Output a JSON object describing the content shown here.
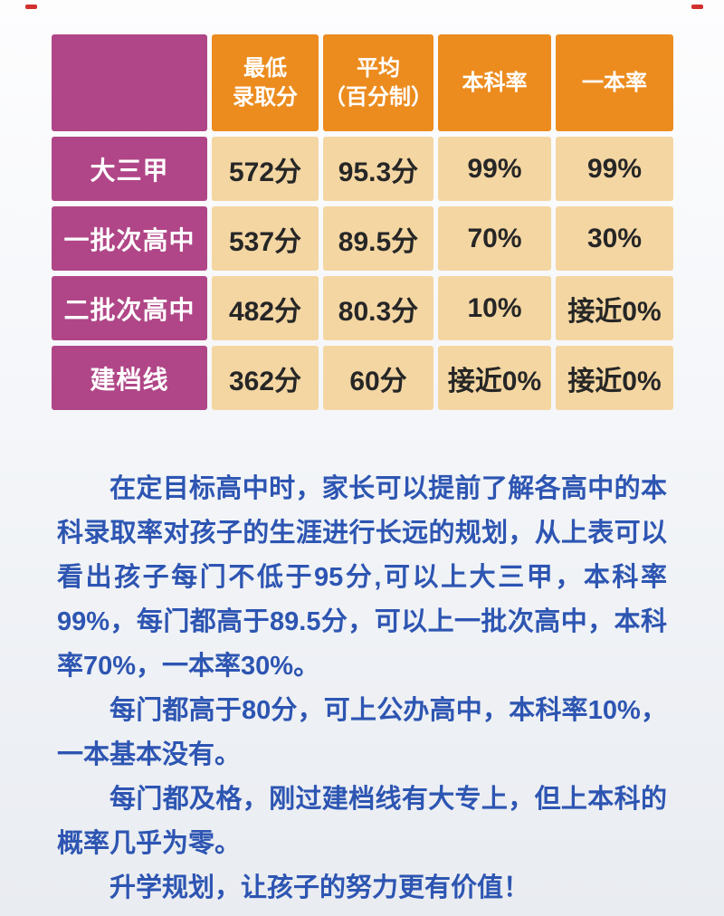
{
  "table": {
    "headers": [
      {
        "lines": []
      },
      {
        "lines": [
          "最低",
          "录取分"
        ]
      },
      {
        "lines": [
          "平均",
          "（百分制）"
        ]
      },
      {
        "lines": [
          "本科率"
        ]
      },
      {
        "lines": [
          "一本率"
        ]
      }
    ],
    "rows": [
      {
        "label": "大三甲",
        "values": [
          "572分",
          "95.3分",
          "99%",
          "99%"
        ]
      },
      {
        "label": "一批次高中",
        "values": [
          "537分",
          "89.5分",
          "70%",
          "30%"
        ]
      },
      {
        "label": "二批次高中",
        "values": [
          "482分",
          "80.3分",
          "10%",
          "接近0%"
        ]
      },
      {
        "label": "建档线",
        "values": [
          "362分",
          "60分",
          "接近0%",
          "接近0%"
        ]
      }
    ]
  },
  "paragraphs": [
    "在定目标高中时，家长可以提前了解各高中的本科录取率对孩子的生涯进行长远的规划，从上表可以看出孩子每门不低于95分,可以上大三甲，本科率99%，每门都高于89.5分，可以上一批次高中，本科率70%，一本率30%。",
    "每门都高于80分，可上公办高中，本科率10%，一本基本没有。",
    "每门都及格，刚过建档线有大专上，但上本科的概率几乎为零。",
    "升学规划，让孩子的努力更有价值！"
  ],
  "colors": {
    "magenta": "#b04687",
    "orange": "#ec8c1f",
    "tan": "#f4d6a2",
    "cell_text": "#262626",
    "blue": "#2d55b2",
    "bg_top": "#fdfdfe",
    "bg_bottom": "#e9ecf1",
    "mark": "#d22f2f"
  }
}
